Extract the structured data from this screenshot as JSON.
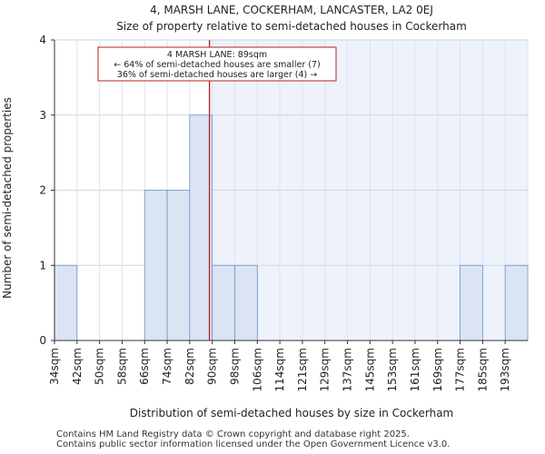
{
  "chart_data": {
    "type": "bar",
    "title": "4, MARSH LANE, COCKERHAM, LANCASTER, LA2 0EJ",
    "subtitle": "Size of property relative to semi-detached houses in Cockerham",
    "xlabel": "Distribution of semi-detached houses by size in Cockerham",
    "ylabel": "Number of semi-detached properties",
    "categories": [
      "34sqm",
      "42sqm",
      "50sqm",
      "58sqm",
      "66sqm",
      "74sqm",
      "82sqm",
      "90sqm",
      "98sqm",
      "106sqm",
      "114sqm",
      "121sqm",
      "129sqm",
      "137sqm",
      "145sqm",
      "153sqm",
      "161sqm",
      "169sqm",
      "177sqm",
      "185sqm",
      "193sqm"
    ],
    "values": [
      1,
      0,
      0,
      0,
      2,
      2,
      3,
      1,
      1,
      0,
      0,
      0,
      0,
      0,
      0,
      0,
      0,
      0,
      1,
      0,
      1
    ],
    "ylim": [
      0,
      4
    ],
    "yticks": [
      "0",
      "1",
      "2",
      "3",
      "4"
    ],
    "property_size_sqm": 89,
    "annotation": {
      "line1": "4 MARSH LANE: 89sqm",
      "line2": "← 64% of semi-detached houses are smaller (7)",
      "line3": "36% of semi-detached houses are larger (4) →"
    },
    "colors": {
      "bar_fill": "#dae4f4",
      "bar_stroke": "#6f8fc8",
      "highlight_bg": "#eef2fb",
      "marker_line": "#b22222",
      "annotation_border": "#b22222"
    }
  },
  "footer": {
    "line1": "Contains HM Land Registry data © Crown copyright and database right 2025.",
    "line2": "Contains public sector information licensed under the Open Government Licence v3.0."
  }
}
